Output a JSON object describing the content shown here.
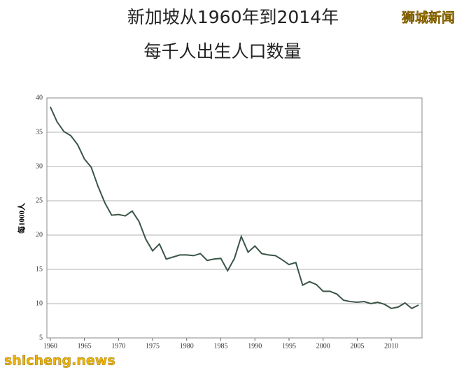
{
  "chart_data": {
    "type": "line",
    "title": "新加坡从1960年到2014年",
    "subtitle": "每千人出生人口数量",
    "ylabel": "每1000人",
    "watermarks": [
      "狮城新闻",
      "shicheng.news"
    ],
    "x": [
      1960,
      1961,
      1962,
      1963,
      1964,
      1965,
      1966,
      1967,
      1968,
      1969,
      1970,
      1971,
      1972,
      1973,
      1974,
      1975,
      1976,
      1977,
      1978,
      1979,
      1980,
      1981,
      1982,
      1983,
      1984,
      1985,
      1986,
      1987,
      1988,
      1989,
      1990,
      1991,
      1992,
      1993,
      1994,
      1995,
      1996,
      1997,
      1998,
      1999,
      2000,
      2001,
      2002,
      2003,
      2004,
      2005,
      2006,
      2007,
      2008,
      2009,
      2010,
      2011,
      2012,
      2013,
      2014
    ],
    "series": [
      {
        "color": "#3b5547",
        "values": [
          38.7,
          36.5,
          35.1,
          34.5,
          33.2,
          31.1,
          29.9,
          27.1,
          24.7,
          22.9,
          23.0,
          22.8,
          23.5,
          22.0,
          19.4,
          17.7,
          18.7,
          16.5,
          16.8,
          17.1,
          17.1,
          17.0,
          17.3,
          16.3,
          16.5,
          16.6,
          14.8,
          16.6,
          19.8,
          17.5,
          18.4,
          17.3,
          17.1,
          17.0,
          16.4,
          15.7,
          16.0,
          12.7,
          13.2,
          12.8,
          11.8,
          11.8,
          11.4,
          10.5,
          10.3,
          10.2,
          10.3,
          10.0,
          10.2,
          9.9,
          9.3,
          9.5,
          10.1,
          9.3,
          9.8
        ]
      }
    ],
    "xlim": [
      1959.5,
      2014.5
    ],
    "xticks": [
      1960,
      1965,
      1970,
      1975,
      1980,
      1985,
      1990,
      1995,
      2000,
      2005,
      2010
    ],
    "ylim": [
      5,
      40
    ],
    "yticks": [
      5,
      10,
      15,
      20,
      25,
      30,
      35,
      40
    ],
    "grid": true
  }
}
